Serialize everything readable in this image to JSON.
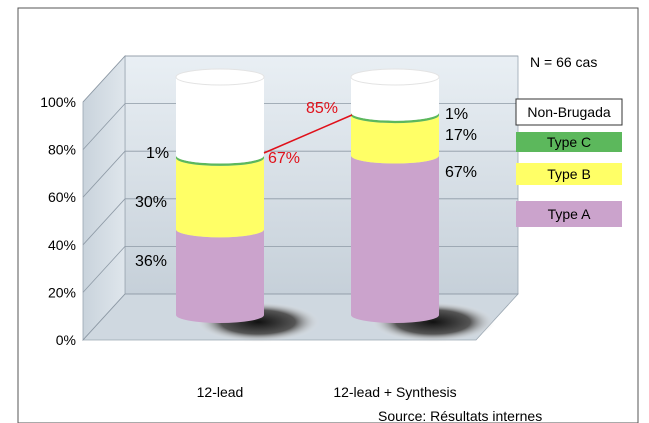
{
  "chart_data": {
    "type": "bar",
    "stacked": true,
    "three_d": true,
    "categories": [
      "12-lead",
      "12-lead + Synthesis"
    ],
    "series": [
      {
        "name": "Type A",
        "values": [
          36,
          67
        ],
        "color": "#cba3cc"
      },
      {
        "name": "Type B",
        "values": [
          30,
          17
        ],
        "color": "#ffff66"
      },
      {
        "name": "Type C",
        "values": [
          1,
          1
        ],
        "color": "#5cb85c"
      },
      {
        "name": "Non-Brugada",
        "values": [
          33,
          15
        ],
        "color": "#ffffff"
      }
    ],
    "segment_labels": [
      [
        "36%",
        "30%",
        "1%"
      ],
      [
        "67%",
        "17%",
        "1%"
      ]
    ],
    "cumulative_labels": [
      "67%",
      "85%"
    ],
    "cumulative_color": "#e0101a",
    "ylim": [
      0,
      100
    ],
    "y_ticks": [
      "0%",
      "20%",
      "40%",
      "60%",
      "80%",
      "100%"
    ],
    "grid": true,
    "legend_position": "right",
    "annotation": "N = 66 cas",
    "source": "Source: Résultats internes",
    "title": "",
    "xlabel": "",
    "ylabel": ""
  }
}
